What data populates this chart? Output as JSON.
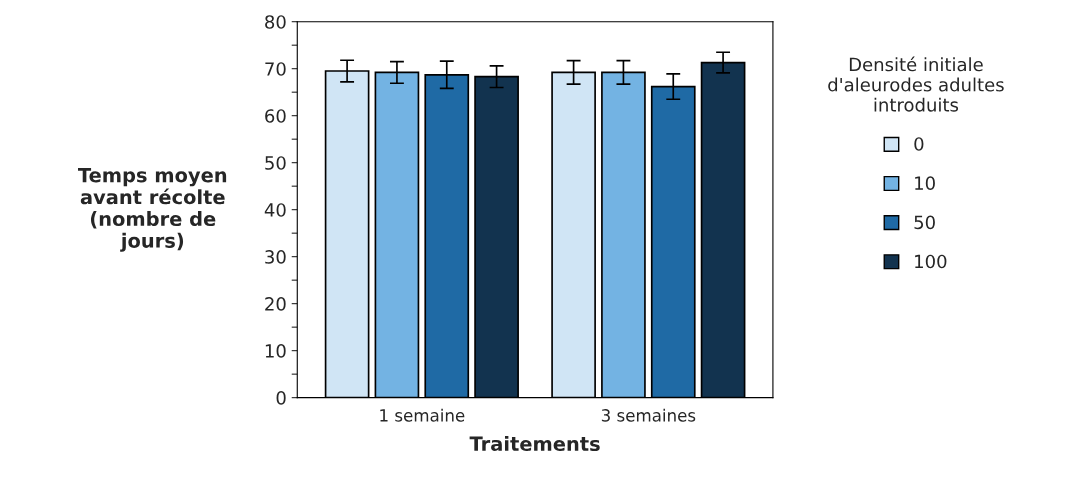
{
  "chart_data": {
    "type": "bar",
    "xlabel": "Traitements",
    "ylabel": "Temps moyen\navant récolte\n(nombre de\njours)",
    "legend_title": "Densité initiale\nd'aleurodes adultes\nintroduits",
    "categories": [
      "1 semaine",
      "3 semaines"
    ],
    "series": [
      {
        "name": "0",
        "color": "#d0e5f5",
        "values": [
          69.5,
          69.2
        ],
        "errors": [
          2.3,
          2.5
        ]
      },
      {
        "name": "10",
        "color": "#73b3e3",
        "values": [
          69.2,
          69.2
        ],
        "errors": [
          2.3,
          2.5
        ]
      },
      {
        "name": "50",
        "color": "#1f6aa5",
        "values": [
          68.7,
          66.2
        ],
        "errors": [
          2.9,
          2.7
        ]
      },
      {
        "name": "100",
        "color": "#12334f",
        "values": [
          68.3,
          71.3
        ],
        "errors": [
          2.3,
          2.2
        ]
      }
    ],
    "ylim": [
      0,
      80
    ],
    "yticks": [
      0,
      {
        "value": 5,
        "label": null
      },
      10,
      {
        "value": 15,
        "label": null
      },
      20,
      {
        "value": 25,
        "label": null
      },
      30,
      {
        "value": 35,
        "label": null
      },
      40,
      {
        "value": 45,
        "label": null
      },
      50,
      {
        "value": 55,
        "label": null
      },
      60,
      {
        "value": 65,
        "label": null
      },
      70,
      {
        "value": 75,
        "label": null
      },
      80
    ],
    "grid": false,
    "legend": "right"
  }
}
